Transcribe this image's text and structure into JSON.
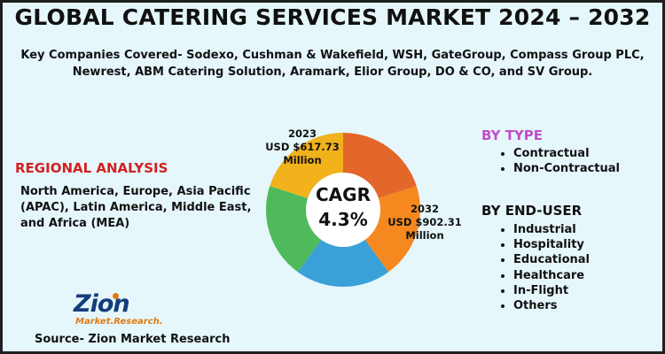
{
  "title": "GLOBAL CATERING SERVICES MARKET 2024 – 2032",
  "companies": "Key Companies Covered- Sodexo, Cushman & Wakefield, WSH, GateGroup, Compass Group PLC, Newrest, ABM Catering Solution, Aramark, Elior Group, DO & CO, and SV Group.",
  "regional": {
    "title": "REGIONAL ANALYSIS",
    "text": "North America, Europe, Asia Pacific (APAC), Latin America, Middle East, and Africa (MEA)"
  },
  "by_type": {
    "title": "BY TYPE",
    "items": [
      "Contractual",
      "Non-Contractual"
    ]
  },
  "by_end_user": {
    "title": "BY END-USER",
    "items": [
      "Industrial",
      "Hospitality",
      "Educational",
      "Healthcare",
      "In-Flight",
      "Others"
    ]
  },
  "source": "Source- Zion Market Research",
  "logo": {
    "main": "Zion",
    "sub": "Market.Research."
  },
  "chart_data": {
    "type": "pie",
    "style": "donut",
    "center_label": "CAGR",
    "center_value": "4.3%",
    "slices": [
      {
        "value": 20,
        "color": "#e3672a"
      },
      {
        "value": 20,
        "color": "#f5881f"
      },
      {
        "value": 20,
        "color": "#3aa0d8"
      },
      {
        "value": 20,
        "color": "#4fba5c"
      },
      {
        "value": 20,
        "color": "#f2b21c"
      }
    ],
    "annotations": [
      {
        "year": "2023",
        "value": "USD $617.73",
        "unit": "Million"
      },
      {
        "year": "2032",
        "value": "USD $902.31",
        "unit": "Million"
      }
    ]
  },
  "colors": {
    "background": "#e5f7fb",
    "regional_title": "#d32020",
    "type_title": "#c14ec9"
  }
}
